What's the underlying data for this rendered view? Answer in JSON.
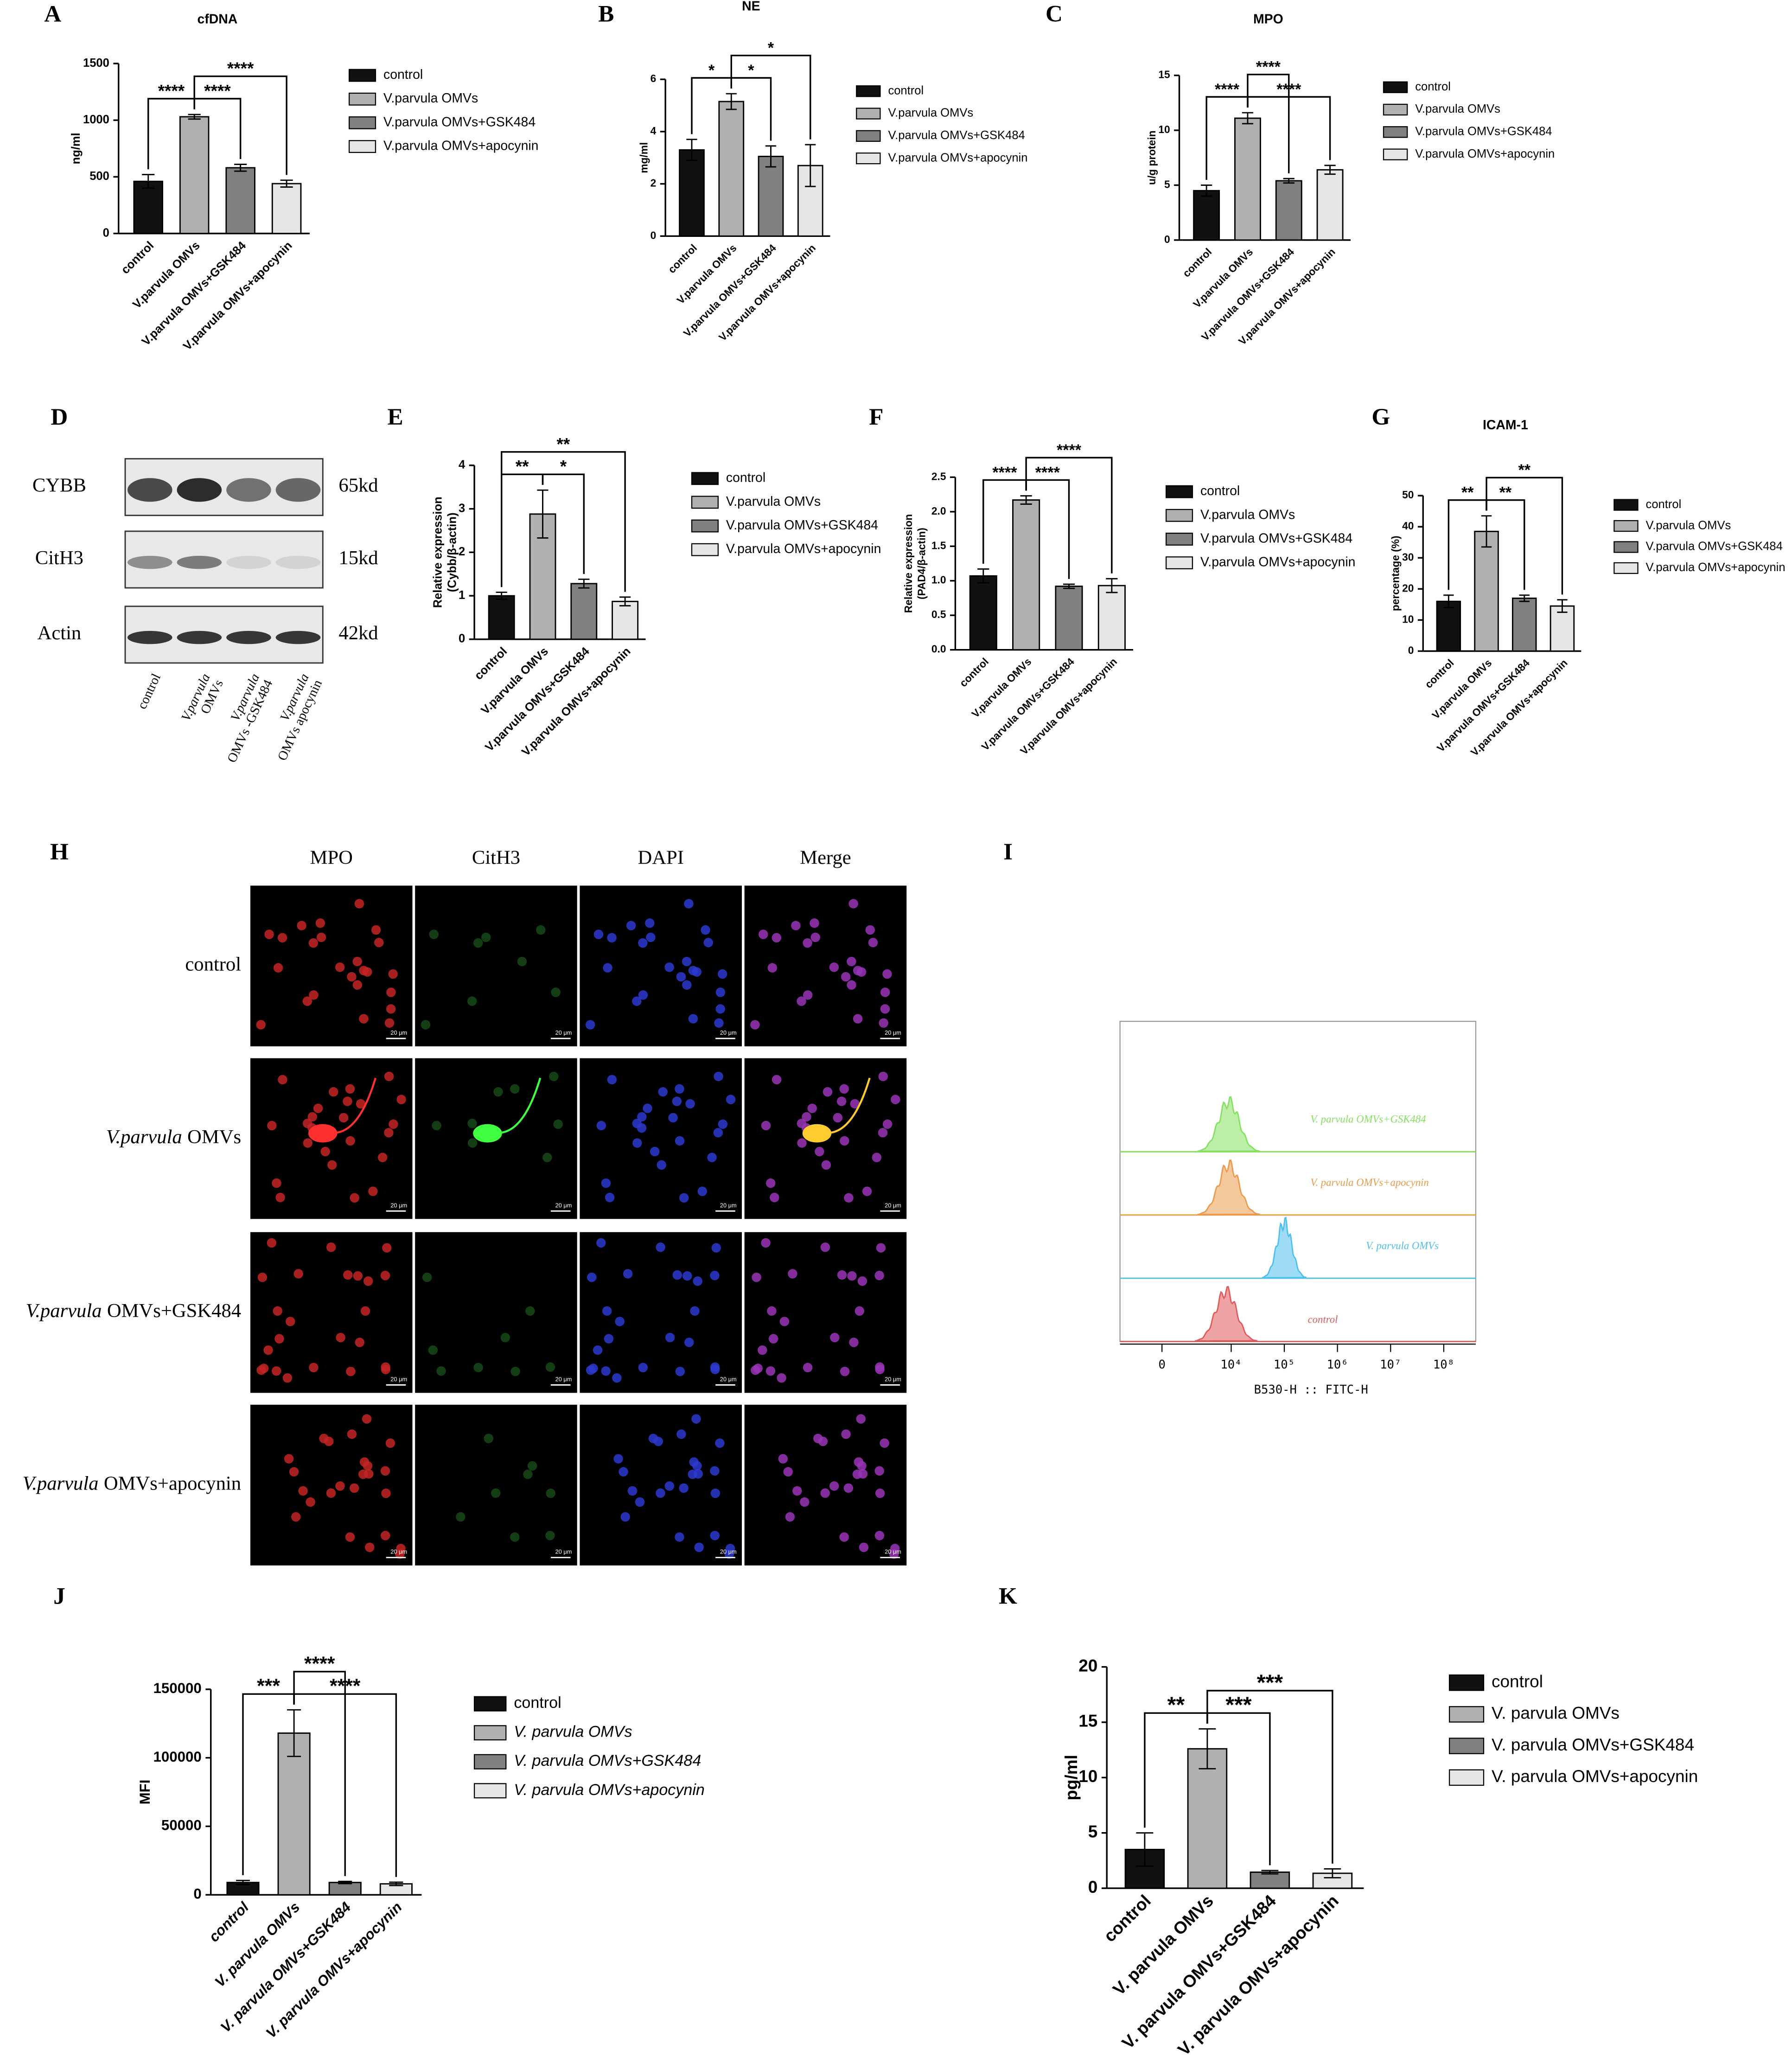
{
  "panel_labels": [
    "A",
    "B",
    "C",
    "D",
    "E",
    "F",
    "G",
    "H",
    "I",
    "J",
    "K"
  ],
  "chart_data": [
    {
      "type": "bar",
      "title": "cfDNA",
      "y_label": [
        "ng/ml"
      ],
      "categories": [
        "control",
        "V.parvula OMVs",
        "V.parvula OMVs+GSK484",
        "V.parvula OMVs+apocynin"
      ],
      "values": [
        460,
        1030,
        580,
        440
      ],
      "errors": [
        60,
        20,
        30,
        30
      ],
      "colors": [
        "#111111",
        "#b0b0b0",
        "#808080",
        "#e6e6e6"
      ],
      "ylim": [
        0,
        1500
      ],
      "yticks": [
        0,
        500,
        1000,
        1500
      ],
      "significance": [
        {
          "groups": [
            0,
            1
          ],
          "label": "****"
        },
        {
          "groups": [
            1,
            2
          ],
          "label": "****"
        },
        {
          "groups": [
            1,
            3
          ],
          "label": "****"
        }
      ]
    },
    {
      "type": "bar",
      "title": "NE",
      "y_label": [
        "mg/ml"
      ],
      "categories": [
        "control",
        "V.parvula OMVs",
        "V.parvula OMVs+GSK484",
        "V.parvula OMVs+apocynin"
      ],
      "values": [
        3.3,
        5.15,
        3.05,
        2.7
      ],
      "errors": [
        0.4,
        0.3,
        0.4,
        0.8
      ],
      "colors": [
        "#111111",
        "#b0b0b0",
        "#808080",
        "#e6e6e6"
      ],
      "ylim": [
        0,
        6
      ],
      "yticks": [
        0,
        2,
        4,
        6
      ],
      "significance": [
        {
          "groups": [
            0,
            1
          ],
          "label": "*"
        },
        {
          "groups": [
            1,
            2
          ],
          "label": "*"
        },
        {
          "groups": [
            1,
            3
          ],
          "label": "*"
        }
      ]
    },
    {
      "type": "bar",
      "title": "MPO",
      "y_label": [
        "u/g protein"
      ],
      "categories": [
        "control",
        "V.parvula OMVs",
        "V.parvula OMVs+GSK484",
        "V.parvula OMVs+apocynin"
      ],
      "values": [
        4.5,
        11.1,
        5.4,
        6.4
      ],
      "errors": [
        0.5,
        0.5,
        0.2,
        0.4
      ],
      "colors": [
        "#111111",
        "#b0b0b0",
        "#808080",
        "#e6e6e6"
      ],
      "ylim": [
        0,
        15
      ],
      "yticks": [
        0,
        5,
        10,
        15
      ],
      "significance": [
        {
          "groups": [
            0,
            1
          ],
          "label": "****"
        },
        {
          "groups": [
            1,
            3
          ],
          "label": "****"
        },
        {
          "groups": [
            1,
            2
          ],
          "label": "****"
        }
      ]
    },
    {
      "type": "bar",
      "y_label": [
        "Relative expression",
        "(Cybb/β-actin)"
      ],
      "categories": [
        "control",
        "V.parvula OMVs",
        "V.parvula OMVs+GSK484",
        "V.parvula OMVs+apocynin"
      ],
      "values": [
        1.0,
        2.88,
        1.28,
        0.87
      ],
      "errors": [
        0.08,
        0.55,
        0.1,
        0.1
      ],
      "colors": [
        "#111111",
        "#b0b0b0",
        "#808080",
        "#e6e6e6"
      ],
      "ylim": [
        0,
        4
      ],
      "yticks": [
        0,
        1,
        2,
        3,
        4
      ],
      "significance": [
        {
          "groups": [
            0,
            1
          ],
          "label": "**"
        },
        {
          "groups": [
            1,
            2
          ],
          "label": "*"
        },
        {
          "groups": [
            0,
            3
          ],
          "label": "**"
        }
      ]
    },
    {
      "type": "bar",
      "y_label": [
        "Relative expression",
        "(PAD4/β-actin)"
      ],
      "categories": [
        "control",
        "V.parvula OMVs",
        "V.parvula OMVs+GSK484",
        "V.parvula OMVs+apocynin"
      ],
      "values": [
        1.07,
        2.17,
        0.92,
        0.93
      ],
      "errors": [
        0.1,
        0.06,
        0.03,
        0.1
      ],
      "colors": [
        "#111111",
        "#b0b0b0",
        "#808080",
        "#e6e6e6"
      ],
      "ylim": [
        0,
        2.5
      ],
      "yticks": [
        {
          "value": 0,
          "label": "0.0"
        },
        0.5,
        {
          "value": 1,
          "label": "1.0"
        },
        1.5,
        {
          "value": 2,
          "label": "2.0"
        },
        2.5
      ],
      "significance": [
        {
          "groups": [
            1,
            2
          ],
          "label": "****"
        },
        {
          "groups": [
            0,
            1
          ],
          "label": "****"
        },
        {
          "groups": [
            1,
            3
          ],
          "label": "****"
        }
      ]
    },
    {
      "type": "bar",
      "title": "ICAM-1",
      "y_label": [
        "percentage  (%)"
      ],
      "categories": [
        "control",
        "V.parvula OMVs",
        "V.parvula OMVs+GSK484",
        "V.parvula OMVs+apocynin"
      ],
      "values": [
        16,
        38.5,
        17,
        14.5
      ],
      "errors": [
        2,
        5,
        1,
        2
      ],
      "colors": [
        "#111111",
        "#b0b0b0",
        "#808080",
        "#e6e6e6"
      ],
      "ylim": [
        0,
        50
      ],
      "yticks": [
        0,
        10,
        20,
        30,
        40,
        50
      ],
      "significance": [
        {
          "groups": [
            0,
            1
          ],
          "label": "**"
        },
        {
          "groups": [
            1,
            2
          ],
          "label": "**"
        },
        {
          "groups": [
            1,
            3
          ],
          "label": "**"
        }
      ]
    },
    {
      "type": "bar",
      "y_label": [
        "MFI"
      ],
      "italic": true,
      "categories": [
        "control",
        "V. parvula OMVs",
        "V. parvula OMVs+GSK484",
        "V. parvula OMVs+apocynin"
      ],
      "values": [
        9000,
        118000,
        9000,
        8000
      ],
      "errors": [
        1500,
        17000,
        800,
        1200
      ],
      "colors": [
        "#111111",
        "#b0b0b0",
        "#808080",
        "#e6e6e6"
      ],
      "ylim": [
        0,
        150000
      ],
      "yticks": [
        0,
        50000,
        100000,
        150000
      ],
      "significance": [
        {
          "groups": [
            0,
            1
          ],
          "label": "***"
        },
        {
          "groups": [
            1,
            3
          ],
          "label": "****"
        },
        {
          "groups": [
            1,
            2
          ],
          "label": "****"
        }
      ]
    },
    {
      "type": "bar",
      "y_label": [
        "pg/ml"
      ],
      "categories": [
        "control",
        "V. parvula OMVs",
        "V. parvula OMVs+GSK484",
        "V. parvula OMVs+apocynin"
      ],
      "values": [
        3.5,
        12.6,
        1.45,
        1.35
      ],
      "errors": [
        1.5,
        1.8,
        0.15,
        0.4
      ],
      "colors": [
        "#111111",
        "#b0b0b0",
        "#808080",
        "#e6e6e6"
      ],
      "ylim": [
        0,
        20
      ],
      "yticks": [
        0,
        5,
        10,
        15,
        20
      ],
      "significance": [
        {
          "groups": [
            0,
            1
          ],
          "label": "**"
        },
        {
          "groups": [
            1,
            2
          ],
          "label": "***"
        },
        {
          "groups": [
            1,
            3
          ],
          "label": "***"
        }
      ]
    },
    {
      "type": "density",
      "x_label": "B530-H :: FITC-H",
      "xscale": "asinh",
      "xlim": [
        -3000,
        400000000
      ],
      "xticks": [
        0,
        {
          "value": 10000,
          "label": "10⁴"
        },
        {
          "value": 100000,
          "label": "10⁵"
        },
        {
          "value": 1000000,
          "label": "10⁶"
        },
        {
          "value": 10000000,
          "label": "10⁷"
        },
        {
          "value": 100000000,
          "label": "10⁸"
        }
      ],
      "series": [
        {
          "name": "control",
          "color": "#e05a5a",
          "peak": 8000
        },
        {
          "name": "V. parvula OMVs",
          "color": "#4fc0ee",
          "peak": 100000
        },
        {
          "name": "V. parvula OMVs+apocynin",
          "color": "#eb9a4c",
          "peak": 9000
        },
        {
          "name": "V. parvula OMVs+GSK484",
          "color": "#86e060",
          "peak": 9000
        }
      ]
    }
  ],
  "blot": {
    "rows": [
      {
        "protein": "CYBB",
        "size": "65kd"
      },
      {
        "protein": "CitH3",
        "size": "15kd"
      },
      {
        "protein": "Actin",
        "size": "42kd"
      }
    ],
    "lanes": [
      {
        "text": "control"
      },
      {
        "italic": "V.parvula",
        "text": "OMVs"
      },
      {
        "italic": "V.parvula",
        "text": "OMVs -GSK484"
      },
      {
        "italic": "V.parvula",
        "text": "OMVs apocynin"
      }
    ]
  },
  "microscopy": {
    "columns": [
      "MPO",
      "CitH3",
      "DAPI",
      "Merge"
    ],
    "rows": [
      {
        "text": "control"
      },
      {
        "italic": "V.parvula",
        "text": "OMVs"
      },
      {
        "italic": "V.parvula",
        "text": "OMVs+GSK484"
      },
      {
        "italic": "V.parvula",
        "text": "OMVs+apocynin"
      }
    ],
    "scale_bar": "20 μm"
  }
}
